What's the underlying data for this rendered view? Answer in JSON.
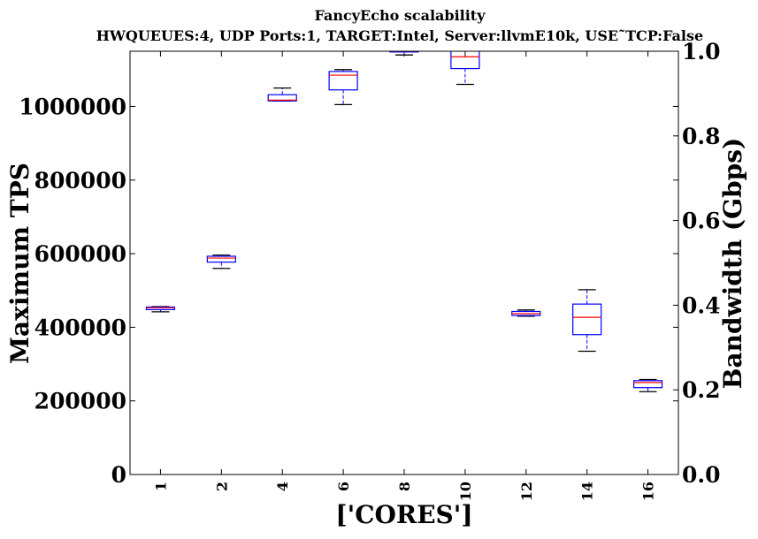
{
  "chart_data": {
    "type": "box",
    "title": "FancyEcho scalability",
    "subtitle": "HWQUEUES:4, UDP Ports:1, TARGET:Intel, Server:llvmE10k, USE˜TCP:False",
    "xlabel": "['CORES']",
    "ylabel": "Maximum TPS",
    "y2label": "Bandwidth (Gbps)",
    "categories": [
      "1",
      "2",
      "4",
      "6",
      "8",
      "10",
      "12",
      "14",
      "16"
    ],
    "ylim": [
      0,
      1150000
    ],
    "y2lim": [
      0.0,
      1.0
    ],
    "yticks": [
      0,
      200000,
      400000,
      600000,
      800000,
      1000000
    ],
    "ytick_labels": [
      "0",
      "200000",
      "400000",
      "600000",
      "800000",
      "1000000"
    ],
    "y2ticks": [
      0.0,
      0.2,
      0.4,
      0.6,
      0.8,
      1.0
    ],
    "y2tick_labels": [
      "0.0",
      "0.2",
      "0.4",
      "0.6",
      "0.8",
      "1.0"
    ],
    "boxes": [
      {
        "category": "1",
        "whisker_low": 442000,
        "q1": 448000,
        "median": 453000,
        "q3": 455000,
        "whisker_high": 456000
      },
      {
        "category": "2",
        "whisker_low": 560000,
        "q1": 577000,
        "median": 588000,
        "q3": 593000,
        "whisker_high": 596000
      },
      {
        "category": "4",
        "whisker_low": 1015000,
        "q1": 1015000,
        "median": 1017000,
        "q3": 1032000,
        "whisker_high": 1050000
      },
      {
        "category": "6",
        "whisker_low": 1005000,
        "q1": 1045000,
        "median": 1085000,
        "q3": 1095000,
        "whisker_high": 1100000
      },
      {
        "category": "8",
        "whisker_low": 1140000,
        "q1": 1148000,
        "median": 1150000,
        "q3": 1152000,
        "whisker_high": 1160000
      },
      {
        "category": "10",
        "whisker_low": 1060000,
        "q1": 1103000,
        "median": 1135000,
        "q3": 1160000,
        "whisker_high": 1180000
      },
      {
        "category": "12",
        "whisker_low": 430000,
        "q1": 432000,
        "median": 437000,
        "q3": 443000,
        "whisker_high": 447000
      },
      {
        "category": "14",
        "whisker_low": 335000,
        "q1": 380000,
        "median": 427000,
        "q3": 463000,
        "whisker_high": 502000
      },
      {
        "category": "16",
        "whisker_low": 225000,
        "q1": 236000,
        "median": 250000,
        "q3": 255000,
        "whisker_high": 258000
      }
    ],
    "colors": {
      "box": "#0000ff",
      "median": "#ff0000",
      "whisker": "#000000",
      "axes": "#000000"
    },
    "grid": false,
    "legend": "none"
  }
}
